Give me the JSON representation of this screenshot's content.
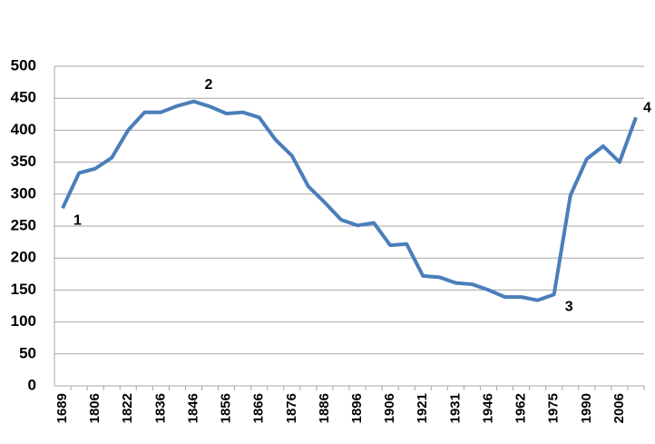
{
  "chart_data": {
    "type": "line",
    "categories": [
      "1689",
      null,
      "1806",
      null,
      "1822",
      null,
      "1836",
      null,
      "1846",
      null,
      "1856",
      null,
      "1866",
      null,
      "1876",
      null,
      "1886",
      null,
      "1896",
      null,
      "1906",
      null,
      "1921",
      null,
      "1931",
      null,
      "1946",
      null,
      "1962",
      null,
      "1975",
      null,
      "1990",
      null,
      "2006",
      null
    ],
    "values": [
      278,
      333,
      340,
      357,
      400,
      428,
      428,
      438,
      445,
      437,
      426,
      428,
      420,
      385,
      360,
      312,
      287,
      260,
      251,
      255,
      220,
      222,
      172,
      170,
      161,
      159,
      150,
      139,
      139,
      134,
      143,
      298,
      355,
      375,
      350,
      420
    ],
    "point_labels": [
      "1",
      null,
      null,
      null,
      null,
      null,
      null,
      null,
      "2",
      null,
      null,
      null,
      null,
      null,
      null,
      null,
      null,
      null,
      null,
      null,
      null,
      null,
      null,
      null,
      null,
      null,
      null,
      null,
      null,
      null,
      "3",
      null,
      null,
      null,
      null,
      "4"
    ],
    "color": "#4a7ebb",
    "ylim": [
      0,
      500
    ],
    "yticks": [
      0,
      50,
      100,
      150,
      200,
      250,
      300,
      350,
      400,
      450,
      500
    ],
    "grid": true
  }
}
